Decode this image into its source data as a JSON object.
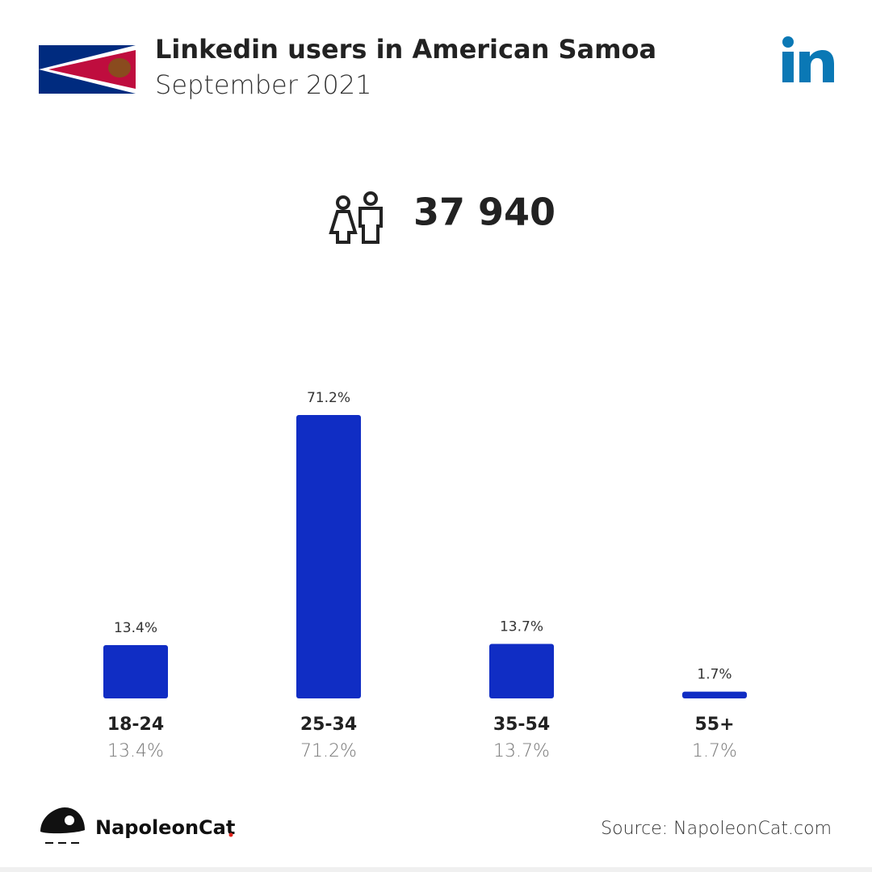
{
  "header": {
    "title": "Linkedin users in American Samoa",
    "subtitle": "September 2021"
  },
  "total_users": "37 940",
  "chart_data": {
    "type": "bar",
    "categories": [
      "18-24",
      "25-34",
      "35-54",
      "55+"
    ],
    "values": [
      13.4,
      71.2,
      13.7,
      1.7
    ],
    "value_labels": [
      "13.4%",
      "71.2%",
      "13.7%",
      "1.7%"
    ],
    "color": "#102dc4"
  },
  "footer": {
    "brand": "NapoleonCat",
    "source": "Source: NapoleonCat.com"
  }
}
